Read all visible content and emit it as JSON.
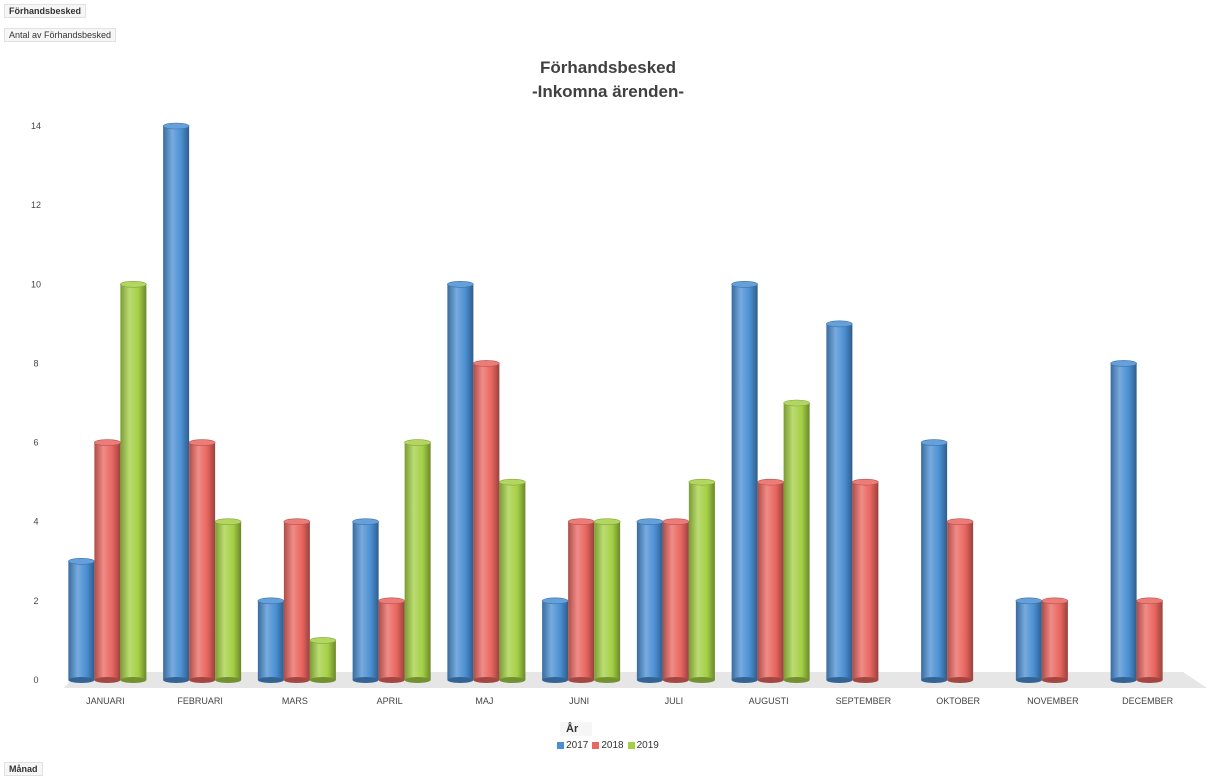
{
  "pivot": {
    "report_field": "Förhandsbesked",
    "values_field": "Antal av Förhandsbesked",
    "axis_field": "Månad",
    "legend_field": "År"
  },
  "colors": {
    "2017": "#4a8fd3",
    "2018": "#e9655f",
    "2019": "#a4cf44"
  },
  "chart_data": {
    "type": "bar",
    "title": "Förhandsbesked",
    "subtitle": "-Inkomna ärenden-",
    "xlabel": "",
    "ylabel": "",
    "ylim": [
      0,
      14
    ],
    "yticks": [
      0,
      2,
      4,
      6,
      8,
      10,
      12,
      14
    ],
    "grid": false,
    "legend_position": "bottom",
    "categories": [
      "JANUARI",
      "FEBRUARI",
      "MARS",
      "APRIL",
      "MAJ",
      "JUNI",
      "JULI",
      "AUGUSTI",
      "SEPTEMBER",
      "OKTOBER",
      "NOVEMBER",
      "DECEMBER"
    ],
    "series": [
      {
        "name": "2017",
        "values": [
          3,
          14,
          2,
          4,
          10,
          2,
          4,
          10,
          9,
          6,
          2,
          8
        ]
      },
      {
        "name": "2018",
        "values": [
          6,
          6,
          4,
          2,
          8,
          4,
          4,
          5,
          5,
          4,
          2,
          2
        ]
      },
      {
        "name": "2019",
        "values": [
          10,
          4,
          1,
          6,
          5,
          4,
          5,
          7,
          null,
          null,
          null,
          null
        ]
      }
    ]
  }
}
